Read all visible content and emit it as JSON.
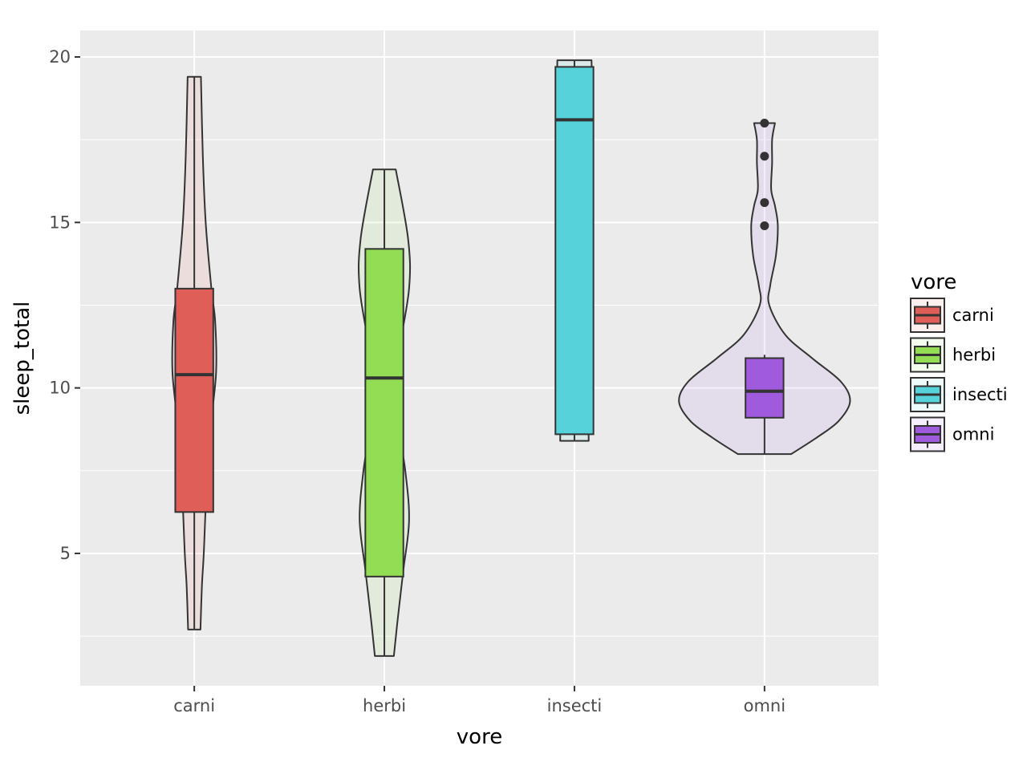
{
  "chart_data": {
    "type": "violin",
    "xlabel": "vore",
    "ylabel": "sleep_total",
    "categories": [
      "carni",
      "herbi",
      "insecti",
      "omni"
    ],
    "ylim": [
      1.0,
      20.8
    ],
    "y_ticks": [
      5,
      10,
      15,
      20
    ],
    "y_tick_labels": [
      "5",
      "10",
      "15",
      "20"
    ],
    "grid": true,
    "legend": {
      "title": "vore",
      "placement": "right",
      "entries": [
        "carni",
        "herbi",
        "insecti",
        "omni"
      ]
    },
    "colors": {
      "carni": "#e05e58",
      "herbi": "#92dd53",
      "insecti": "#56d3da",
      "omni": "#a05ade"
    },
    "groups": [
      {
        "name": "carni",
        "box": {
          "q1": 6.25,
          "median": 10.4,
          "q3": 13.0,
          "whisker_low": 2.7,
          "whisker_high": 19.4
        },
        "outliers": [],
        "violin": [
          [
            2.7,
            0.065
          ],
          [
            4,
            0.08
          ],
          [
            5,
            0.1
          ],
          [
            7,
            0.13
          ],
          [
            9,
            0.18
          ],
          [
            10.5,
            0.23
          ],
          [
            12,
            0.22
          ],
          [
            13,
            0.18
          ],
          [
            15,
            0.12
          ],
          [
            17,
            0.09
          ],
          [
            19.4,
            0.07
          ]
        ]
      },
      {
        "name": "herbi",
        "box": {
          "q1": 4.3,
          "median": 10.3,
          "q3": 14.2,
          "whisker_low": 1.9,
          "whisker_high": 16.6
        },
        "outliers": [],
        "violin": [
          [
            1.9,
            0.1
          ],
          [
            3,
            0.14
          ],
          [
            4.5,
            0.2
          ],
          [
            6,
            0.26
          ],
          [
            7.5,
            0.22
          ],
          [
            9.5,
            0.12
          ],
          [
            11,
            0.15
          ],
          [
            13,
            0.26
          ],
          [
            14.5,
            0.25
          ],
          [
            16.6,
            0.12
          ]
        ]
      },
      {
        "name": "insecti",
        "box": {
          "q1": 8.6,
          "median": 18.1,
          "q3": 19.7,
          "whisker_low": 8.4,
          "whisker_high": 19.9
        },
        "outliers": [],
        "violin": [
          [
            8.4,
            0.15
          ],
          [
            10,
            0.14
          ],
          [
            12,
            0.1
          ],
          [
            14,
            0.14
          ],
          [
            16,
            0.19
          ],
          [
            18,
            0.19
          ],
          [
            19.9,
            0.18
          ]
        ]
      },
      {
        "name": "omni",
        "box": {
          "q1": 9.1,
          "median": 9.9,
          "q3": 10.9,
          "whisker_low": 8.0,
          "whisker_high": 11.0
        },
        "outliers": [
          18.0,
          17.0,
          15.6,
          14.9
        ],
        "violin": [
          [
            8.0,
            0.28
          ],
          [
            8.5,
            0.55
          ],
          [
            9.0,
            0.78
          ],
          [
            9.6,
            0.9
          ],
          [
            10.2,
            0.8
          ],
          [
            10.9,
            0.5
          ],
          [
            11.6,
            0.22
          ],
          [
            12.5,
            0.05
          ],
          [
            13.1,
            0.06
          ],
          [
            14,
            0.12
          ],
          [
            14.9,
            0.14
          ],
          [
            15.5,
            0.11
          ],
          [
            16.0,
            0.07
          ],
          [
            16.8,
            0.08
          ],
          [
            17.5,
            0.08
          ],
          [
            18.0,
            0.11
          ]
        ]
      }
    ]
  }
}
